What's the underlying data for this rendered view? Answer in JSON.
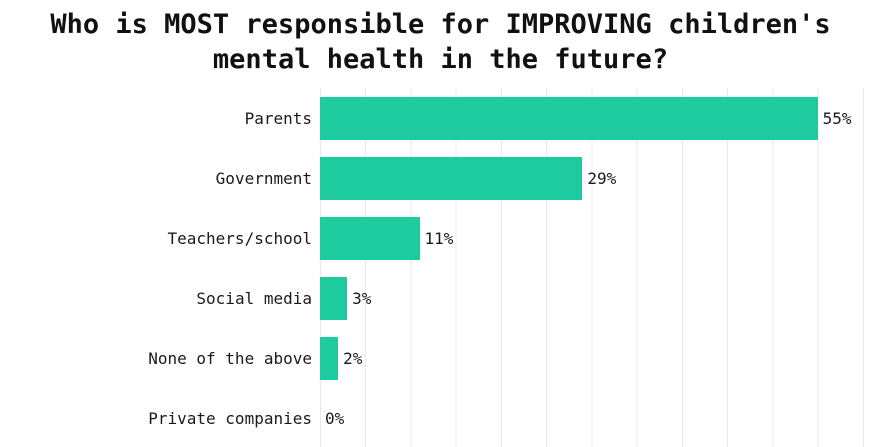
{
  "title": {
    "line1": "Who is MOST responsible for IMPROVING children's",
    "line2": "mental health in the future?"
  },
  "chart_data": {
    "type": "bar",
    "orientation": "horizontal",
    "title": "Who is MOST responsible for IMPROVING children's mental health in the future?",
    "categories": [
      "Parents",
      "Government",
      "Teachers/school",
      "Social media",
      "None of the above",
      "Private companies"
    ],
    "values": [
      55,
      29,
      11,
      3,
      2,
      0
    ],
    "value_labels": [
      "55%",
      "29%",
      "11%",
      "3%",
      "2%",
      "0%"
    ],
    "xlabel": "",
    "ylabel": "",
    "xlim": [
      0,
      62
    ],
    "gridline_interval": 5,
    "grid": "vertical-only",
    "legend": "none",
    "colors": {
      "bar": "#1ecb9e",
      "gridline": "#e8e8e8",
      "title_text": "#111111",
      "label_text": "#1a1a1a",
      "background": "#ffffff"
    }
  }
}
